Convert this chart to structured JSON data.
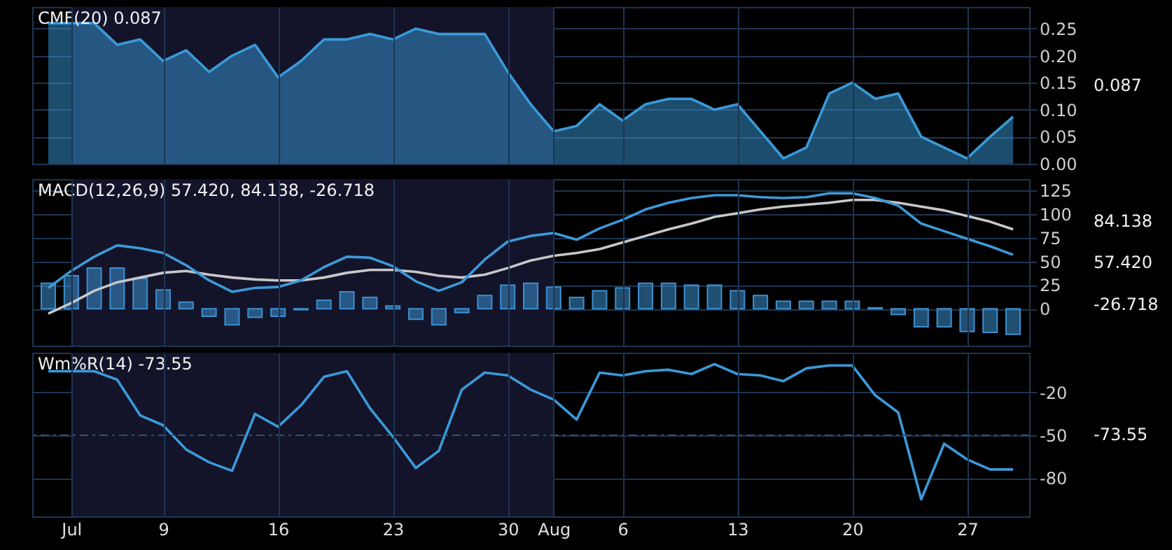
{
  "chart_data": [
    {
      "type": "area",
      "title": "CMF(20) 0.087",
      "categories": [
        null,
        "Jul",
        null,
        null,
        null,
        "9",
        null,
        null,
        null,
        null,
        "16",
        null,
        null,
        null,
        null,
        "23",
        null,
        null,
        null,
        null,
        "30",
        null,
        "Aug",
        null,
        null,
        "6",
        null,
        null,
        null,
        null,
        "13",
        null,
        null,
        null,
        null,
        "20",
        null,
        null,
        null,
        null,
        "27",
        null,
        null
      ],
      "series": [
        {
          "color": "#3a9ad9",
          "values": [
            0.26,
            0.26,
            0.26,
            0.22,
            0.23,
            0.19,
            0.21,
            0.17,
            0.2,
            0.22,
            0.16,
            0.19,
            0.23,
            0.23,
            0.24,
            0.23,
            0.25,
            0.24,
            0.24,
            0.24,
            0.17,
            0.11,
            0.06,
            0.07,
            0.11,
            0.08,
            0.11,
            0.12,
            0.12,
            0.1,
            0.11,
            0.06,
            0.01,
            0.03,
            0.13,
            0.15,
            0.12,
            0.13,
            0.05,
            0.03,
            0.01,
            0.05,
            0.087
          ]
        }
      ],
      "ylim": [
        0,
        0.29
      ],
      "yticks": [
        {
          "value": 0,
          "label": "0.00"
        },
        0.05,
        {
          "value": 0.1,
          "label": "0.10"
        },
        0.15,
        {
          "value": 0.2,
          "label": "0.20"
        },
        0.25
      ],
      "grid": true,
      "tick_labels": "y",
      "bands": [
        {
          "axis": "x",
          "from": "Jul",
          "to": "Aug",
          "color": "#13142a"
        }
      ],
      "annotations": [
        "0.087"
      ]
    },
    {
      "type": "bar",
      "title": "MACD(12,26,9) 57.420, 84.138, -26.718",
      "categories": [
        null,
        "Jul",
        null,
        null,
        null,
        "9",
        null,
        null,
        null,
        null,
        "16",
        null,
        null,
        null,
        null,
        "23",
        null,
        null,
        null,
        null,
        "30",
        null,
        "Aug",
        null,
        null,
        "6",
        null,
        null,
        null,
        null,
        "13",
        null,
        null,
        null,
        null,
        "20",
        null,
        null,
        null,
        null,
        "27",
        null,
        null
      ],
      "series": [
        {
          "color": "#3d8fcf",
          "values": [
            27,
            35,
            43,
            43,
            32,
            20,
            7,
            -8,
            -17,
            -9,
            -8,
            -1,
            9,
            18,
            12,
            3,
            -11,
            -17,
            -4,
            14,
            25,
            27,
            23,
            12,
            19,
            22,
            27,
            27,
            25,
            25,
            19,
            14,
            8,
            8,
            8,
            8,
            1,
            -6,
            -19,
            -19,
            -24,
            -25,
            -27
          ]
        },
        {
          "type": "line",
          "color": "#c8c8c8",
          "values": [
            -5,
            6,
            19,
            28,
            33,
            38,
            40,
            36,
            33,
            31,
            30,
            30,
            33,
            38,
            41,
            41,
            39,
            35,
            33,
            36,
            43,
            51,
            56,
            59,
            63,
            70,
            77,
            84,
            90,
            97,
            101,
            105,
            108,
            110,
            112,
            115,
            115,
            112,
            108,
            104,
            98,
            92,
            84
          ]
        },
        {
          "type": "line",
          "color": "#3d9ad8",
          "values": [
            22,
            40,
            55,
            67,
            64,
            59,
            46,
            30,
            18,
            22,
            23,
            30,
            44,
            55,
            54,
            45,
            29,
            19,
            28,
            52,
            71,
            77,
            80,
            73,
            85,
            94,
            105,
            112,
            117,
            120,
            120,
            118,
            117,
            118,
            122,
            122,
            117,
            109,
            90,
            82,
            74,
            66,
            57
          ]
        }
      ],
      "ylim": [
        -39,
        137
      ],
      "yticks": [
        0,
        25,
        50,
        75,
        100,
        125
      ],
      "grid": true,
      "tick_labels": "y",
      "bands": [
        {
          "axis": "x",
          "from": "Jul",
          "to": "Aug",
          "color": "#13142a"
        }
      ],
      "annotations": [
        "84.138",
        "57.420",
        "-26.718"
      ]
    },
    {
      "type": "line",
      "title": "Wm%R(14) -73.55",
      "categories": [
        null,
        "Jul",
        null,
        null,
        null,
        "9",
        null,
        null,
        null,
        null,
        "16",
        null,
        null,
        null,
        null,
        "23",
        null,
        null,
        null,
        null,
        "30",
        null,
        "Aug",
        null,
        null,
        "6",
        null,
        null,
        null,
        null,
        "13",
        null,
        null,
        null,
        null,
        "20",
        null,
        null,
        null,
        null,
        "27",
        null,
        null
      ],
      "series": [
        {
          "color": "#3a9ad9",
          "values": [
            -5,
            -5,
            -5,
            -11,
            -36,
            -43,
            -60,
            -69,
            -75,
            -35,
            -44,
            -29,
            -9,
            -5,
            -31,
            -51,
            -73,
            -61,
            -18,
            -6,
            -8,
            -18,
            -25,
            -39,
            -6,
            -8,
            -5,
            -4,
            -7,
            0,
            -7,
            -8,
            -12,
            -3,
            -1,
            -1,
            -22,
            -34,
            -95,
            -56,
            -67,
            -74,
            -74
          ]
        }
      ],
      "ylim": [
        -107,
        8
      ],
      "yticks": [
        -80,
        -50,
        -20
      ],
      "grid": true,
      "bands": [
        {
          "axis": "x",
          "from": "Jul",
          "to": "Aug",
          "color": "#13142a"
        }
      ],
      "ref_lines": [
        {
          "axis": "y",
          "value": -50,
          "line_style": "dashed",
          "color": "#33506e"
        }
      ],
      "annotations": [
        "-73.55"
      ]
    }
  ]
}
